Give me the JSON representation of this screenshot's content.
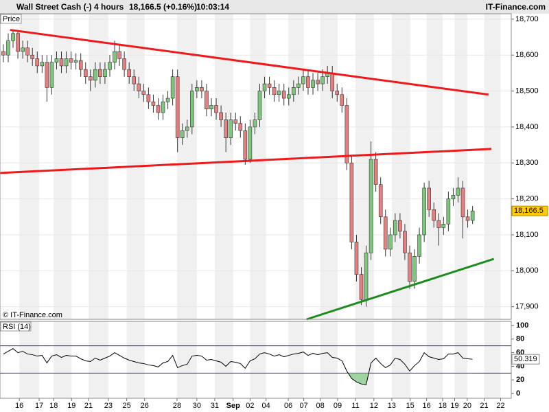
{
  "header": {
    "instrument": "Wall Street Cash (-)",
    "timeframe": "4 hours",
    "quote": "18,166.5 (+0.16%)",
    "time": "10:03:14",
    "brand": "IT-Finance.com"
  },
  "watermark": "© IT-Finance.com",
  "chart_data": [
    {
      "type": "candlestick",
      "title": "Price",
      "open": [
        18610,
        18600,
        18640,
        18660,
        18610,
        18620,
        18600,
        18590,
        18570,
        18580,
        18510,
        18580,
        18590,
        18570,
        18590,
        18580,
        18585,
        18560,
        18540,
        18530,
        18560,
        18540,
        18560,
        18580,
        18610,
        18590,
        18560,
        18540,
        18520,
        18500,
        18490,
        18470,
        18460,
        18440,
        18470,
        18480,
        18540,
        18370,
        18390,
        18400,
        18500,
        18510,
        18500,
        18450,
        18460,
        18440,
        18420,
        18370,
        18420,
        18410,
        18390,
        18310,
        18400,
        18420,
        18500,
        18520,
        18510,
        18490,
        18500,
        18480,
        18490,
        18510,
        18520,
        18540,
        18510,
        18530,
        18520,
        18540,
        18550,
        18500,
        18490,
        18460,
        18300,
        18080,
        17990,
        17920,
        18050,
        18310,
        18240,
        18150,
        18060,
        18100,
        18140,
        18110,
        18050,
        17970,
        18040,
        18100,
        18230,
        18170,
        18140,
        18120,
        18130,
        18200,
        18210,
        18230,
        18150,
        18140
      ],
      "high": [
        18630,
        18660,
        18670,
        18670,
        18640,
        18640,
        18620,
        18610,
        18600,
        18600,
        18600,
        18610,
        18610,
        18610,
        18610,
        18605,
        18605,
        18580,
        18560,
        18580,
        18580,
        18580,
        18600,
        18640,
        18630,
        18610,
        18580,
        18560,
        18540,
        18520,
        18510,
        18490,
        18480,
        18490,
        18500,
        18560,
        18560,
        18410,
        18420,
        18520,
        18530,
        18530,
        18520,
        18480,
        18480,
        18460,
        18440,
        18440,
        18440,
        18430,
        18410,
        18420,
        18440,
        18520,
        18540,
        18540,
        18530,
        18520,
        18520,
        18510,
        18530,
        18540,
        18560,
        18560,
        18550,
        18550,
        18560,
        18570,
        18570,
        18520,
        18510,
        18480,
        18320,
        18100,
        18010,
        18070,
        18360,
        18330,
        18260,
        18170,
        18120,
        18160,
        18160,
        18130,
        18070,
        18060,
        18120,
        18245,
        18250,
        18190,
        18160,
        18150,
        18220,
        18230,
        18260,
        18250,
        18170,
        18180
      ],
      "low": [
        18580,
        18580,
        18620,
        18590,
        18590,
        18580,
        18570,
        18550,
        18550,
        18470,
        18490,
        18560,
        18550,
        18550,
        18560,
        18560,
        18540,
        18520,
        18500,
        18510,
        18520,
        18520,
        18540,
        18560,
        18570,
        18540,
        18520,
        18500,
        18480,
        18470,
        18450,
        18440,
        18420,
        18420,
        18450,
        18460,
        18330,
        18350,
        18370,
        18380,
        18480,
        18480,
        18430,
        18430,
        18420,
        18400,
        18330,
        18350,
        18390,
        18370,
        18295,
        18300,
        18380,
        18400,
        18480,
        18490,
        18470,
        18470,
        18460,
        18460,
        18470,
        18490,
        18500,
        18490,
        18490,
        18500,
        18500,
        18520,
        18480,
        18470,
        18440,
        18280,
        18060,
        17970,
        17905,
        17900,
        18030,
        18220,
        18130,
        18040,
        18040,
        18080,
        18090,
        18030,
        17950,
        17950,
        18020,
        18080,
        18150,
        18120,
        18070,
        18100,
        18110,
        18180,
        18190,
        18090,
        18120,
        18130
      ],
      "close": [
        18600,
        18640,
        18660,
        18610,
        18620,
        18600,
        18590,
        18570,
        18580,
        18510,
        18580,
        18590,
        18570,
        18590,
        18580,
        18585,
        18560,
        18540,
        18530,
        18560,
        18540,
        18560,
        18580,
        18610,
        18590,
        18560,
        18540,
        18520,
        18500,
        18490,
        18470,
        18460,
        18440,
        18470,
        18480,
        18540,
        18370,
        18390,
        18400,
        18500,
        18510,
        18500,
        18450,
        18460,
        18440,
        18420,
        18370,
        18420,
        18410,
        18390,
        18310,
        18400,
        18420,
        18500,
        18520,
        18510,
        18490,
        18500,
        18480,
        18490,
        18510,
        18520,
        18540,
        18510,
        18530,
        18520,
        18540,
        18550,
        18500,
        18490,
        18460,
        18300,
        18080,
        17990,
        17920,
        18050,
        18310,
        18240,
        18150,
        18060,
        18100,
        18140,
        18110,
        18050,
        17970,
        18040,
        18100,
        18230,
        18170,
        18140,
        18120,
        18130,
        18200,
        18210,
        18230,
        18150,
        18140,
        18166.5
      ],
      "last_label": "18,166.5",
      "up_color": "#7cc77c",
      "down_color": "#e48080",
      "trendlines": [
        {
          "color": "#f01818",
          "x": [
            1.4,
            100.3
          ],
          "y": [
            18670,
            18490
          ]
        },
        {
          "color": "#f01818",
          "x": [
            -0.7,
            100.9
          ],
          "y": [
            18272,
            18339
          ]
        },
        {
          "color": "#1c8c1c",
          "x": [
            62.7,
            101.4
          ],
          "y": [
            17865,
            18033
          ]
        }
      ],
      "xlim": [
        -0.7,
        105
      ],
      "xticks": [
        {
          "value": 3.3,
          "label": "16"
        },
        {
          "value": 7.4,
          "label": "17"
        },
        {
          "value": 10.4,
          "label": "18"
        },
        {
          "value": 14.1,
          "label": "19"
        },
        {
          "value": 17.6,
          "label": "21"
        },
        {
          "value": 21.7,
          "label": "23"
        },
        {
          "value": 25.5,
          "label": "25"
        },
        {
          "value": 29.2,
          "label": "26"
        },
        {
          "value": 35.9,
          "label": "28"
        },
        {
          "value": 40,
          "label": "30"
        },
        {
          "value": 43.7,
          "label": "31"
        },
        {
          "value": 47.5,
          "label": "Sep"
        },
        {
          "value": 51,
          "label": "02"
        },
        {
          "value": 54.3,
          "label": "04"
        },
        {
          "value": 58.9,
          "label": "06"
        },
        {
          "value": 62.1,
          "label": "07"
        },
        {
          "value": 65.5,
          "label": "08"
        },
        {
          "value": 69.1,
          "label": "09"
        },
        {
          "value": 72.8,
          "label": "11"
        },
        {
          "value": 76.6,
          "label": "12"
        },
        {
          "value": 80.3,
          "label": "13"
        },
        {
          "value": 84.1,
          "label": "15"
        },
        {
          "value": 87.5,
          "label": "16"
        },
        {
          "value": 90.8,
          "label": "18"
        },
        {
          "value": 93.3,
          "label": "19"
        },
        {
          "value": 95.9,
          "label": "20"
        },
        {
          "value": 99.4,
          "label": "21"
        },
        {
          "value": 102.8,
          "label": "22"
        }
      ],
      "ylim": [
        17865,
        18715
      ],
      "yticks": [
        {
          "value": 17900,
          "label": "17,900"
        },
        {
          "value": 18000,
          "label": "18,000"
        },
        {
          "value": 18100,
          "label": "18,100"
        },
        {
          "value": 18200,
          "label": "18,200"
        },
        {
          "value": 18300,
          "label": "18,300"
        },
        {
          "value": 18400,
          "label": "18,400"
        },
        {
          "value": 18500,
          "label": "18,500"
        },
        {
          "value": 18600,
          "label": "18,600"
        },
        {
          "value": 18700,
          "label": "18,700"
        }
      ]
    },
    {
      "type": "line",
      "title": "RSI (14)",
      "color": "#000000",
      "values": [
        58,
        62,
        66,
        60,
        62,
        58,
        57,
        55,
        56,
        45,
        55,
        57,
        53,
        56,
        55,
        55,
        51,
        48,
        47,
        52,
        49,
        52,
        55,
        60,
        56,
        52,
        49,
        47,
        45,
        44,
        42,
        41,
        39,
        45,
        47,
        56,
        38,
        41,
        43,
        55,
        56,
        55,
        49,
        50,
        48,
        46,
        40,
        47,
        46,
        44,
        37,
        48,
        51,
        58,
        60,
        58,
        55,
        57,
        54,
        56,
        58,
        59,
        61,
        56,
        59,
        57,
        59,
        60,
        53,
        52,
        48,
        33,
        22,
        17,
        14,
        13,
        45,
        52,
        44,
        38,
        42,
        52,
        50,
        43,
        33,
        41,
        47,
        60,
        54,
        52,
        50,
        51,
        58,
        58,
        60,
        52,
        51,
        50.319
      ],
      "levels": [
        30,
        70
      ],
      "level_color": "#20208a",
      "fill_color": "#9fd39f",
      "ylim": [
        -7,
        106
      ],
      "yticks": [
        0,
        20,
        40,
        60,
        80,
        100
      ]
    }
  ]
}
